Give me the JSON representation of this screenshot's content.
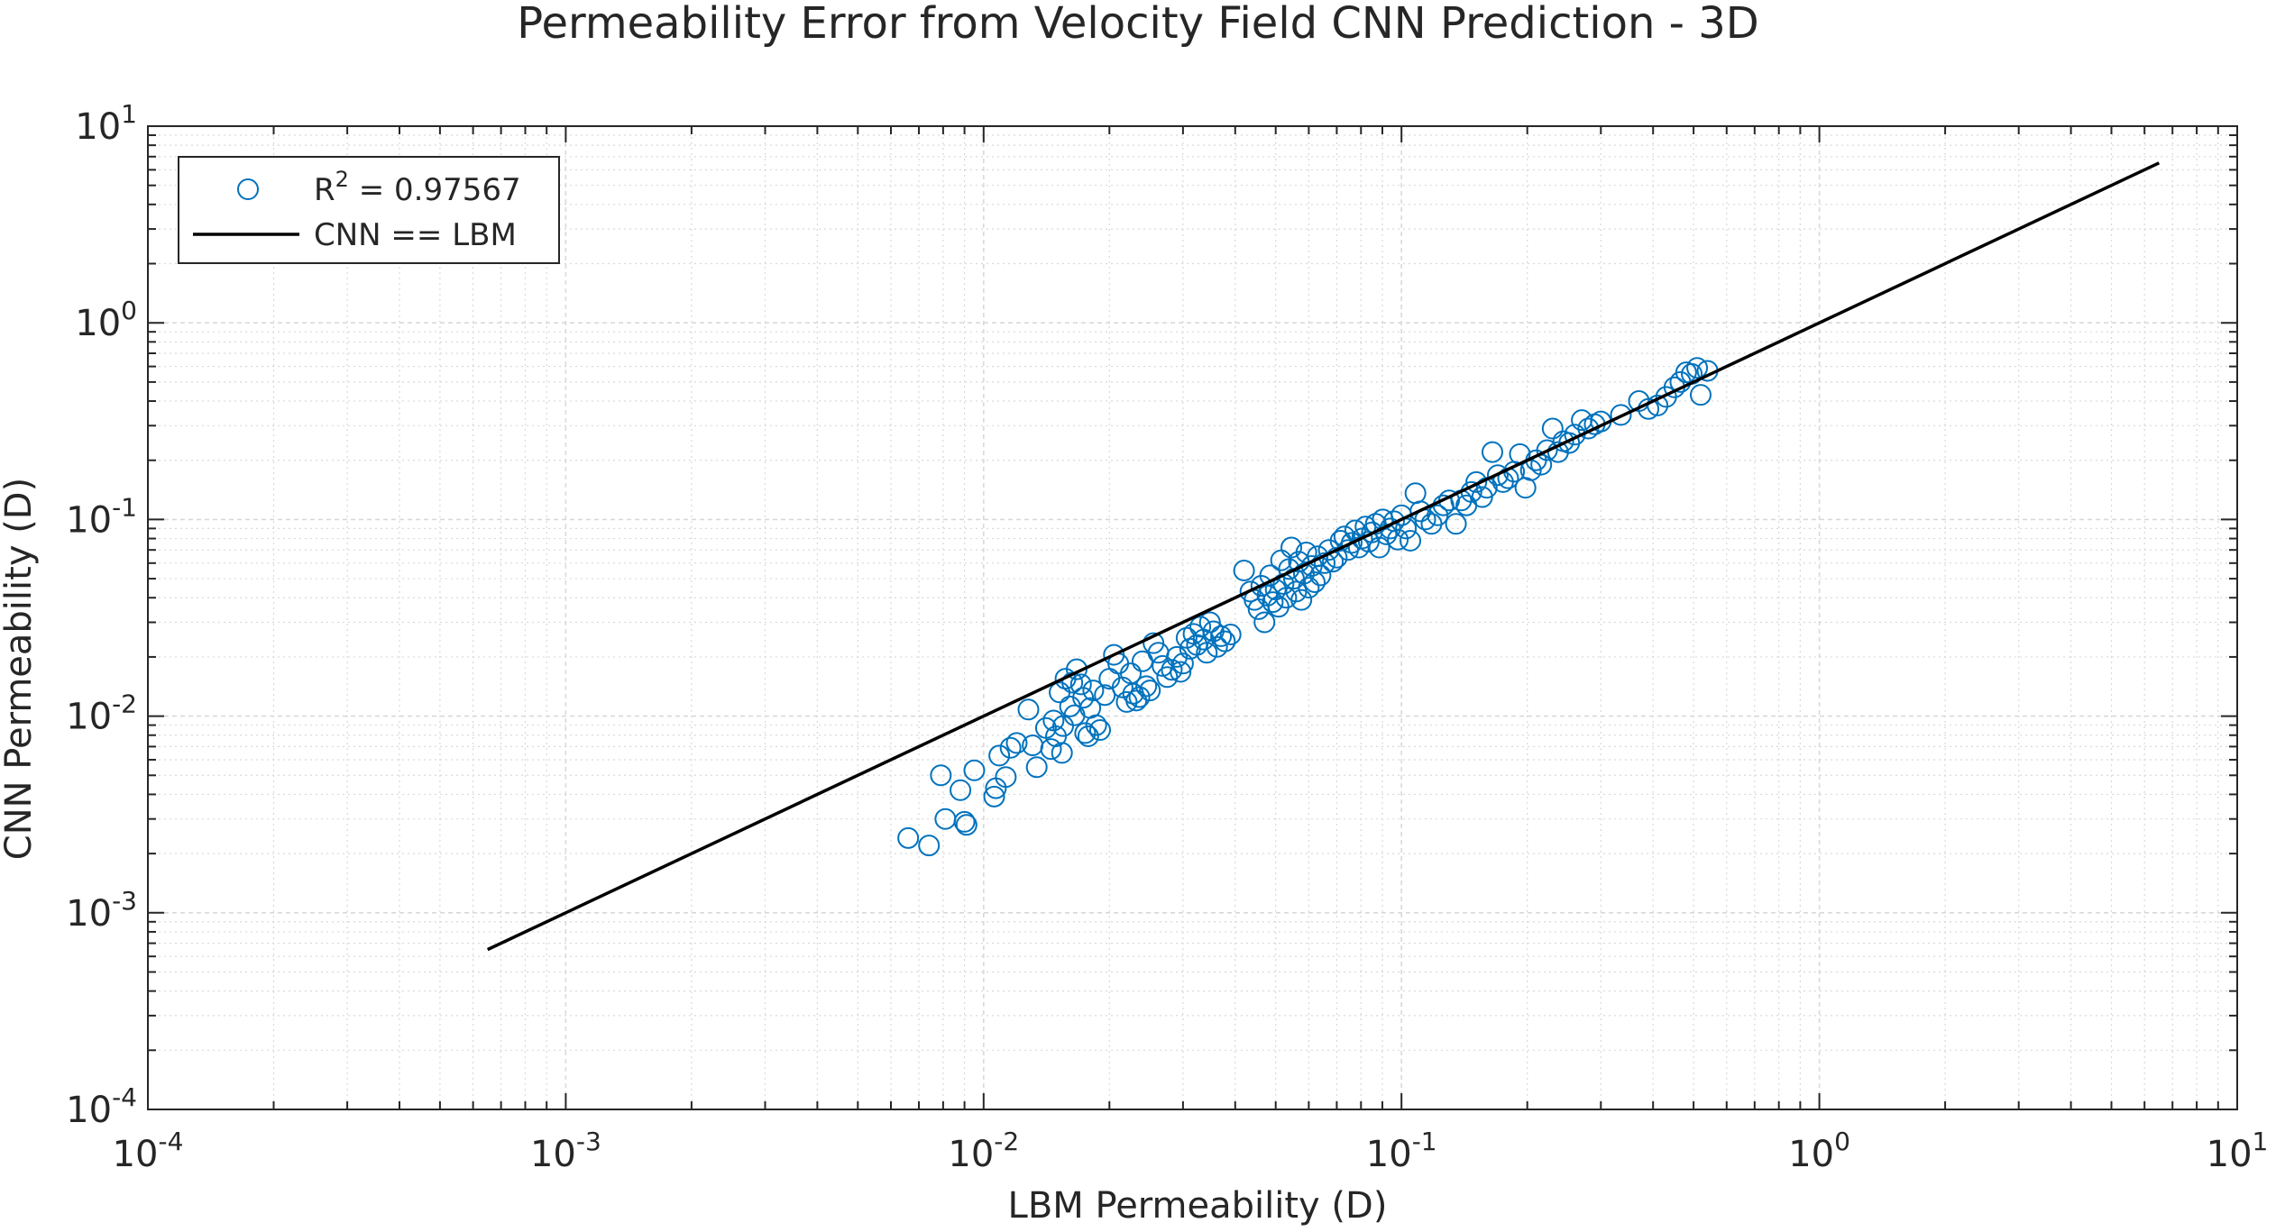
{
  "chart_data": {
    "type": "scatter",
    "title": "Permeability Error from Velocity Field CNN Prediction - 3D",
    "xlabel": "LBM Permeability (D)",
    "ylabel": "CNN Permeability (D)",
    "xscale": "log",
    "yscale": "log",
    "xlim": [
      0.0001,
      10
    ],
    "ylim": [
      0.0001,
      10
    ],
    "x_ticks": [
      {
        "base": "10",
        "exp": "-4"
      },
      {
        "base": "10",
        "exp": "-3"
      },
      {
        "base": "10",
        "exp": "-2"
      },
      {
        "base": "10",
        "exp": "-1"
      },
      {
        "base": "10",
        "exp": "0"
      },
      {
        "base": "10",
        "exp": "1"
      }
    ],
    "y_ticks": [
      {
        "base": "10",
        "exp": "-4"
      },
      {
        "base": "10",
        "exp": "-3"
      },
      {
        "base": "10",
        "exp": "-2"
      },
      {
        "base": "10",
        "exp": "-1"
      },
      {
        "base": "10",
        "exp": "0"
      },
      {
        "base": "10",
        "exp": "1"
      }
    ],
    "grid": true,
    "minor_grid": true,
    "legend_position": "top-left",
    "colors": {
      "scatter": "#0072BD",
      "line": "#000000",
      "axes": "#262626",
      "grid": "#d9d9d9"
    },
    "legend": [
      {
        "kind": "marker",
        "text_main": "R",
        "text_sup": "2",
        "text_rest": " = 0.97567"
      },
      {
        "kind": "line",
        "text_main": "CNN == LBM",
        "text_sup": "",
        "text_rest": ""
      }
    ],
    "series": [
      {
        "name": "R2 = 0.97567",
        "kind": "scatter",
        "marker": "circle-open",
        "points": [
          [
            0.0066,
            0.0024
          ],
          [
            0.0074,
            0.0022
          ],
          [
            0.0079,
            0.005
          ],
          [
            0.0081,
            0.003
          ],
          [
            0.0088,
            0.0042
          ],
          [
            0.009,
            0.0029
          ],
          [
            0.0091,
            0.0028
          ],
          [
            0.0095,
            0.0053
          ],
          [
            0.0106,
            0.0039
          ],
          [
            0.0107,
            0.0043
          ],
          [
            0.0109,
            0.0063
          ],
          [
            0.0113,
            0.0049
          ],
          [
            0.0116,
            0.0069
          ],
          [
            0.012,
            0.0073
          ],
          [
            0.0128,
            0.0108
          ],
          [
            0.0131,
            0.0071
          ],
          [
            0.0134,
            0.0055
          ],
          [
            0.0141,
            0.0087
          ],
          [
            0.0145,
            0.0068
          ],
          [
            0.0147,
            0.0095
          ],
          [
            0.0149,
            0.0079
          ],
          [
            0.0152,
            0.0132
          ],
          [
            0.0154,
            0.0065
          ],
          [
            0.0155,
            0.0089
          ],
          [
            0.0157,
            0.0155
          ],
          [
            0.0161,
            0.0112
          ],
          [
            0.0163,
            0.0148
          ],
          [
            0.0165,
            0.0101
          ],
          [
            0.0167,
            0.0173
          ],
          [
            0.0171,
            0.0145
          ],
          [
            0.0173,
            0.0124
          ],
          [
            0.0175,
            0.0082
          ],
          [
            0.0178,
            0.0079
          ],
          [
            0.018,
            0.011
          ],
          [
            0.0183,
            0.0135
          ],
          [
            0.0186,
            0.009
          ],
          [
            0.019,
            0.0085
          ],
          [
            0.0195,
            0.0128
          ],
          [
            0.02,
            0.0155
          ],
          [
            0.0205,
            0.0205
          ],
          [
            0.021,
            0.0185
          ],
          [
            0.0215,
            0.014
          ],
          [
            0.022,
            0.0118
          ],
          [
            0.0225,
            0.0165
          ],
          [
            0.0228,
            0.013
          ],
          [
            0.0232,
            0.012
          ],
          [
            0.0236,
            0.0125
          ],
          [
            0.024,
            0.019
          ],
          [
            0.0245,
            0.0142
          ],
          [
            0.025,
            0.0135
          ],
          [
            0.0255,
            0.0235
          ],
          [
            0.0262,
            0.021
          ],
          [
            0.0268,
            0.018
          ],
          [
            0.0275,
            0.0158
          ],
          [
            0.0282,
            0.0172
          ],
          [
            0.029,
            0.02
          ],
          [
            0.0296,
            0.0168
          ],
          [
            0.03,
            0.0185
          ],
          [
            0.0306,
            0.025
          ],
          [
            0.0312,
            0.022
          ],
          [
            0.0318,
            0.0262
          ],
          [
            0.0324,
            0.023
          ],
          [
            0.033,
            0.0285
          ],
          [
            0.0336,
            0.0245
          ],
          [
            0.0342,
            0.021
          ],
          [
            0.0348,
            0.03
          ],
          [
            0.0355,
            0.027
          ],
          [
            0.0362,
            0.0225
          ],
          [
            0.037,
            0.0255
          ],
          [
            0.0378,
            0.024
          ],
          [
            0.039,
            0.026
          ],
          [
            0.042,
            0.055
          ],
          [
            0.0435,
            0.043
          ],
          [
            0.0445,
            0.039
          ],
          [
            0.0455,
            0.035
          ],
          [
            0.0462,
            0.046
          ],
          [
            0.047,
            0.03
          ],
          [
            0.0478,
            0.041
          ],
          [
            0.0485,
            0.052
          ],
          [
            0.0492,
            0.038
          ],
          [
            0.05,
            0.044
          ],
          [
            0.0508,
            0.036
          ],
          [
            0.0515,
            0.062
          ],
          [
            0.0522,
            0.047
          ],
          [
            0.053,
            0.04
          ],
          [
            0.0538,
            0.056
          ],
          [
            0.0545,
            0.072
          ],
          [
            0.0553,
            0.05
          ],
          [
            0.056,
            0.043
          ],
          [
            0.0568,
            0.061
          ],
          [
            0.0576,
            0.039
          ],
          [
            0.0584,
            0.053
          ],
          [
            0.0592,
            0.068
          ],
          [
            0.06,
            0.045
          ],
          [
            0.061,
            0.058
          ],
          [
            0.062,
            0.048
          ],
          [
            0.063,
            0.065
          ],
          [
            0.064,
            0.052
          ],
          [
            0.0655,
            0.06
          ],
          [
            0.067,
            0.07
          ],
          [
            0.0685,
            0.061
          ],
          [
            0.07,
            0.064
          ],
          [
            0.0715,
            0.078
          ],
          [
            0.073,
            0.082
          ],
          [
            0.0745,
            0.07
          ],
          [
            0.076,
            0.076
          ],
          [
            0.0775,
            0.088
          ],
          [
            0.079,
            0.072
          ],
          [
            0.0805,
            0.08
          ],
          [
            0.082,
            0.092
          ],
          [
            0.0835,
            0.077
          ],
          [
            0.085,
            0.086
          ],
          [
            0.0868,
            0.095
          ],
          [
            0.0885,
            0.072
          ],
          [
            0.0902,
            0.1
          ],
          [
            0.092,
            0.084
          ],
          [
            0.094,
            0.09
          ],
          [
            0.096,
            0.098
          ],
          [
            0.098,
            0.079
          ],
          [
            0.1,
            0.105
          ],
          [
            0.1025,
            0.09
          ],
          [
            0.105,
            0.078
          ],
          [
            0.108,
            0.136
          ],
          [
            0.111,
            0.11
          ],
          [
            0.114,
            0.1
          ],
          [
            0.118,
            0.095
          ],
          [
            0.122,
            0.105
          ],
          [
            0.126,
            0.118
          ],
          [
            0.13,
            0.125
          ],
          [
            0.135,
            0.095
          ],
          [
            0.139,
            0.125
          ],
          [
            0.143,
            0.118
          ],
          [
            0.147,
            0.138
          ],
          [
            0.151,
            0.155
          ],
          [
            0.156,
            0.13
          ],
          [
            0.16,
            0.145
          ],
          [
            0.165,
            0.22
          ],
          [
            0.17,
            0.168
          ],
          [
            0.175,
            0.155
          ],
          [
            0.18,
            0.162
          ],
          [
            0.186,
            0.175
          ],
          [
            0.192,
            0.215
          ],
          [
            0.198,
            0.145
          ],
          [
            0.204,
            0.178
          ],
          [
            0.21,
            0.2
          ],
          [
            0.216,
            0.19
          ],
          [
            0.223,
            0.225
          ],
          [
            0.23,
            0.29
          ],
          [
            0.237,
            0.22
          ],
          [
            0.244,
            0.25
          ],
          [
            0.252,
            0.245
          ],
          [
            0.26,
            0.27
          ],
          [
            0.27,
            0.32
          ],
          [
            0.28,
            0.29
          ],
          [
            0.29,
            0.305
          ],
          [
            0.3,
            0.315
          ],
          [
            0.335,
            0.34
          ],
          [
            0.37,
            0.4
          ],
          [
            0.39,
            0.365
          ],
          [
            0.41,
            0.38
          ],
          [
            0.43,
            0.42
          ],
          [
            0.45,
            0.47
          ],
          [
            0.465,
            0.5
          ],
          [
            0.48,
            0.56
          ],
          [
            0.495,
            0.55
          ],
          [
            0.51,
            0.59
          ],
          [
            0.52,
            0.43
          ],
          [
            0.54,
            0.57
          ]
        ]
      },
      {
        "name": "CNN == LBM",
        "kind": "line",
        "points": [
          [
            0.00065,
            0.00065
          ],
          [
            6.5,
            6.5
          ]
        ]
      }
    ]
  }
}
